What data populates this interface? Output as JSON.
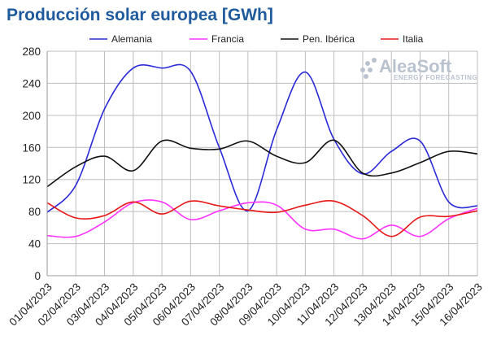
{
  "chart_data": {
    "type": "line",
    "title": "Producción solar europea [GWh]",
    "xlabel": "",
    "ylabel": "",
    "ylim": [
      0,
      280
    ],
    "yticks": [
      0,
      40,
      80,
      120,
      160,
      200,
      240,
      280
    ],
    "grid": true,
    "legend": "top",
    "categories": [
      "01/04/2023",
      "02/04/2023",
      "03/04/2023",
      "04/04/2023",
      "05/04/2023",
      "06/04/2023",
      "07/04/2023",
      "08/04/2023",
      "09/04/2023",
      "10/04/2023",
      "11/04/2023",
      "12/04/2023",
      "13/04/2023",
      "14/04/2023",
      "15/04/2023",
      "16/04/2023"
    ],
    "series": [
      {
        "name": "Alemania",
        "color": "#2a2ad8",
        "values": [
          79,
          113,
          208,
          259,
          259,
          255,
          160,
          81,
          182,
          254,
          170,
          127,
          155,
          168,
          92,
          87
        ]
      },
      {
        "name": "Francia",
        "color": "#ff33ff",
        "values": [
          50,
          49,
          67,
          91,
          92,
          70,
          81,
          91,
          88,
          58,
          58,
          46,
          63,
          49,
          71,
          84
        ]
      },
      {
        "name": "Pen. Ibérica",
        "color": "#111111",
        "values": [
          111,
          136,
          149,
          131,
          168,
          159,
          158,
          168,
          149,
          141,
          169,
          128,
          128,
          141,
          155,
          152
        ]
      },
      {
        "name": "Italia",
        "color": "#e81818",
        "values": [
          91,
          72,
          75,
          92,
          77,
          93,
          87,
          82,
          79,
          88,
          93,
          75,
          49,
          73,
          74,
          81
        ]
      }
    ]
  },
  "watermark": {
    "brand": "AleaSoft",
    "tagline": "ENERGY FORECASTING"
  }
}
